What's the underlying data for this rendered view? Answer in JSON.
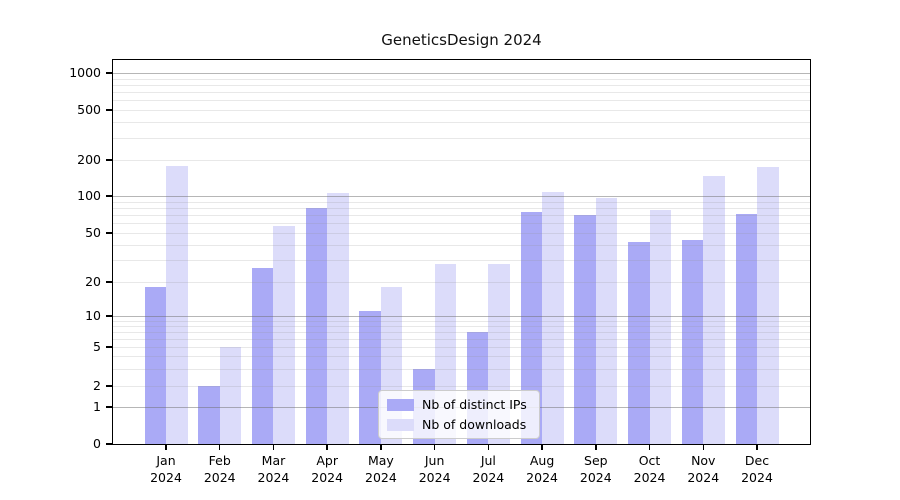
{
  "title": "GeneticsDesign 2024",
  "colors": {
    "distinct_ips": "#aaaaf6",
    "downloads": "#dcdcfa",
    "axis": "#000000",
    "grid_major": "#b9b9b9",
    "grid_minor": "#e7e7e7"
  },
  "legend": {
    "position": "lower center"
  },
  "chart_data": {
    "type": "bar",
    "title": "GeneticsDesign 2024",
    "xlabel": "",
    "ylabel": "",
    "yscale": "log-like (log1p), 0 baseline shown",
    "grid": "horizontal: dark lines at decades 1/10/100/1000, faint minor lines at 2-9 of each decade",
    "y_ticks": [
      {
        "value": 0,
        "label": "0"
      },
      {
        "value": 1,
        "label": "1"
      },
      {
        "value": 2,
        "label": "2"
      },
      {
        "value": 5,
        "label": "5"
      },
      {
        "value": 10,
        "label": "10"
      },
      {
        "value": 20,
        "label": "20"
      },
      {
        "value": 50,
        "label": "50"
      },
      {
        "value": 100,
        "label": "100"
      },
      {
        "value": 200,
        "label": "200"
      },
      {
        "value": 500,
        "label": "500"
      },
      {
        "value": 1000,
        "label": "1000"
      }
    ],
    "categories": [
      {
        "month": "Jan",
        "year": "2024"
      },
      {
        "month": "Feb",
        "year": "2024"
      },
      {
        "month": "Mar",
        "year": "2024"
      },
      {
        "month": "Apr",
        "year": "2024"
      },
      {
        "month": "May",
        "year": "2024"
      },
      {
        "month": "Jun",
        "year": "2024"
      },
      {
        "month": "Jul",
        "year": "2024"
      },
      {
        "month": "Aug",
        "year": "2024"
      },
      {
        "month": "Sep",
        "year": "2024"
      },
      {
        "month": "Oct",
        "year": "2024"
      },
      {
        "month": "Nov",
        "year": "2024"
      },
      {
        "month": "Dec",
        "year": "2024"
      }
    ],
    "series": [
      {
        "name": "Nb of distinct IPs",
        "color": "#aaaaf6",
        "values": [
          18,
          2,
          26,
          80,
          11,
          3,
          7,
          74,
          70,
          42,
          44,
          72
        ]
      },
      {
        "name": "Nb of downloads",
        "color": "#dcdcfa",
        "values": [
          178,
          5,
          57,
          106,
          18,
          28,
          28,
          107,
          97,
          77,
          147,
          176
        ]
      }
    ],
    "legend_position": "lower center"
  }
}
